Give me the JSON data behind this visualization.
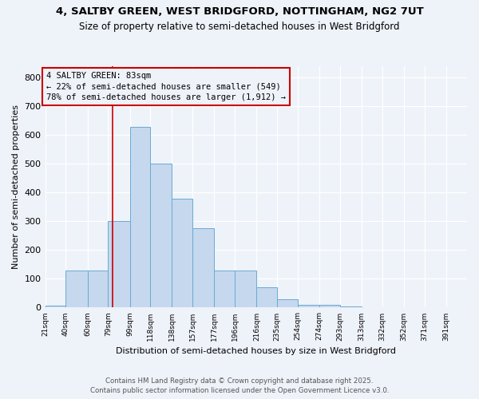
{
  "title1": "4, SALTBY GREEN, WEST BRIDGFORD, NOTTINGHAM, NG2 7UT",
  "title2": "Size of property relative to semi-detached houses in West Bridgford",
  "xlabel": "Distribution of semi-detached houses by size in West Bridgford",
  "ylabel": "Number of semi-detached properties",
  "footnote1": "Contains HM Land Registry data © Crown copyright and database right 2025.",
  "footnote2": "Contains public sector information licensed under the Open Government Licence v3.0.",
  "annotation_title": "4 SALTBY GREEN: 83sqm",
  "annotation_line1": "← 22% of semi-detached houses are smaller (549)",
  "annotation_line2": "78% of semi-detached houses are larger (1,912) →",
  "bar_color": "#c5d8ee",
  "bar_edge_color": "#6aaad4",
  "red_line_x": 83,
  "red_line_color": "#cc0000",
  "bins": [
    21,
    40,
    60,
    79,
    99,
    118,
    138,
    157,
    177,
    196,
    216,
    235,
    254,
    274,
    293,
    313,
    332,
    352,
    371,
    391,
    410
  ],
  "counts": [
    8,
    130,
    130,
    300,
    630,
    500,
    380,
    275,
    130,
    130,
    70,
    28,
    10,
    10,
    5,
    2,
    1,
    1,
    1,
    1
  ],
  "ylim": [
    0,
    840
  ],
  "yticks": [
    0,
    100,
    200,
    300,
    400,
    500,
    600,
    700,
    800
  ],
  "background_color": "#eef2f9",
  "grid_color": "#ffffff"
}
